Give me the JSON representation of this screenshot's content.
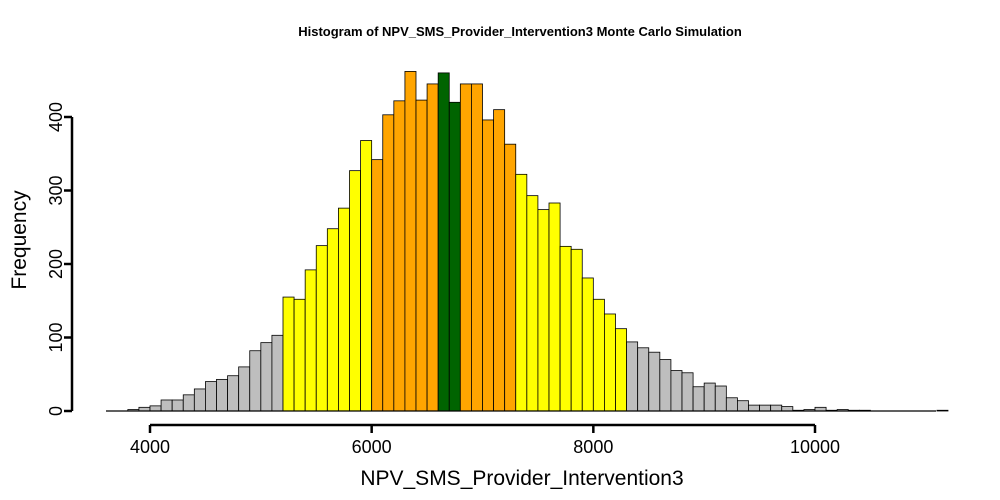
{
  "chart_data": {
    "type": "bar",
    "title": "Histogram of  NPV_SMS_Provider_Intervention3  Monte Carlo Simulation",
    "xlabel": "NPV_SMS_Provider_Intervention3",
    "ylabel": "Frequency",
    "xlim": [
      3600,
      11000
    ],
    "ylim": [
      0,
      460
    ],
    "x_ticks": [
      4000,
      6000,
      8000,
      10000
    ],
    "y_ticks": [
      0,
      100,
      200,
      300,
      400
    ],
    "bin_width": 100,
    "bin_start": 3800,
    "values": [
      2,
      5,
      7,
      15,
      15,
      22,
      30,
      40,
      43,
      48,
      60,
      82,
      93,
      103,
      155,
      152,
      192,
      225,
      248,
      276,
      327,
      368,
      342,
      403,
      422,
      462,
      423,
      445,
      460,
      420,
      445,
      445,
      396,
      410,
      363,
      322,
      293,
      274,
      283,
      224,
      220,
      181,
      152,
      132,
      112,
      94,
      86,
      80,
      70,
      55,
      52,
      33,
      38,
      34,
      18,
      14,
      8,
      8,
      8,
      6,
      1,
      2,
      5,
      1,
      2,
      1,
      1,
      0,
      0,
      0,
      0,
      0,
      0,
      1,
      0,
      0,
      0,
      0
    ],
    "color_bands": [
      {
        "name": "outer",
        "color": "#bebebe"
      },
      {
        "name": "middle",
        "color": "#ffff00"
      },
      {
        "name": "inner",
        "color": "#ffa500"
      },
      {
        "name": "center",
        "color": "#006400"
      }
    ],
    "bar_colors": [
      "#bebebe",
      "#bebebe",
      "#bebebe",
      "#bebebe",
      "#bebebe",
      "#bebebe",
      "#bebebe",
      "#bebebe",
      "#bebebe",
      "#bebebe",
      "#bebebe",
      "#bebebe",
      "#bebebe",
      "#bebebe",
      "#ffff00",
      "#ffff00",
      "#ffff00",
      "#ffff00",
      "#ffff00",
      "#ffff00",
      "#ffff00",
      "#ffff00",
      "#ffa500",
      "#ffa500",
      "#ffa500",
      "#ffa500",
      "#ffa500",
      "#ffa500",
      "#006400",
      "#006400",
      "#ffa500",
      "#ffa500",
      "#ffa500",
      "#ffa500",
      "#ffa500",
      "#ffff00",
      "#ffff00",
      "#ffff00",
      "#ffff00",
      "#ffff00",
      "#ffff00",
      "#ffff00",
      "#ffff00",
      "#ffff00",
      "#ffff00",
      "#bebebe",
      "#bebebe",
      "#bebebe",
      "#bebebe",
      "#bebebe",
      "#bebebe",
      "#bebebe",
      "#bebebe",
      "#bebebe",
      "#bebebe",
      "#bebebe",
      "#bebebe",
      "#bebebe",
      "#bebebe",
      "#bebebe",
      "#bebebe",
      "#bebebe",
      "#bebebe",
      "#bebebe",
      "#bebebe",
      "#bebebe",
      "#bebebe",
      "#bebebe",
      "#bebebe",
      "#bebebe",
      "#bebebe",
      "#bebebe",
      "#bebebe",
      "#bebebe",
      "#bebebe",
      "#bebebe",
      "#bebebe",
      "#bebebe"
    ],
    "grid": false,
    "legend": "none"
  }
}
